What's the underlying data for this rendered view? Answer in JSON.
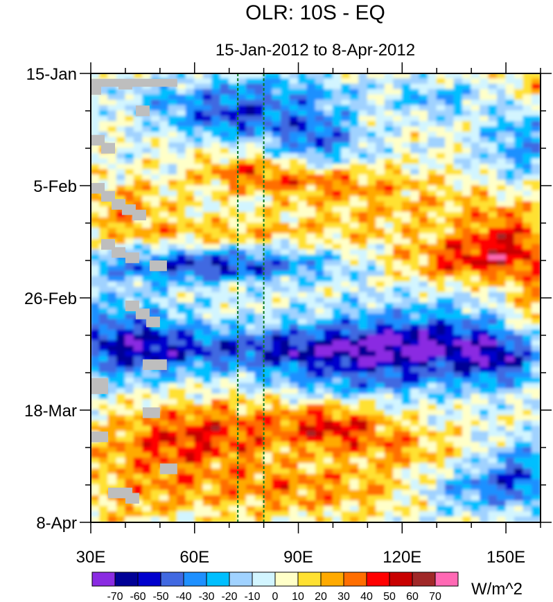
{
  "chart_data": {
    "type": "heatmap",
    "title": "OLR: 10S - EQ",
    "subtitle": "15-Jan-2012 to 8-Apr-2012",
    "x_axis": {
      "range": [
        30,
        160
      ],
      "ticks": [
        30,
        60,
        90,
        120,
        150
      ],
      "tick_labels": [
        "30E",
        "60E",
        "90E",
        "120E",
        "150E"
      ]
    },
    "y_axis": {
      "range_days": [
        0,
        84
      ],
      "ticks_days": [
        0,
        21,
        42,
        63,
        84
      ],
      "tick_labels": [
        "15-Jan",
        "5-Feb",
        "26-Feb",
        "18-Mar",
        "8-Apr"
      ]
    },
    "reference_lines_lon": [
      72.5,
      80
    ],
    "colorbar": {
      "units": "W/m^2",
      "levels": [
        -70,
        -60,
        -50,
        -40,
        -30,
        -20,
        -10,
        0,
        10,
        20,
        30,
        40,
        50,
        60,
        70
      ],
      "level_labels": [
        "-70",
        "-60",
        "-50",
        "-40",
        "-30",
        "-20",
        "-10",
        "0",
        "10",
        "20",
        "30",
        "40",
        "50",
        "60",
        "70"
      ],
      "colors": [
        "#8a2be2",
        "#000096",
        "#0000cd",
        "#4169e1",
        "#1e90ff",
        "#00bfff",
        "#a0d2ff",
        "#d2f5ff",
        "#ffffc8",
        "#ffe132",
        "#ffaa00",
        "#ff6e00",
        "#ff0000",
        "#c80000",
        "#a02828",
        "#ff69b4"
      ]
    },
    "missing_color": "#bebebe",
    "features": [
      {
        "lat_band": "10S-EQ",
        "type": "negative anomaly",
        "lon": [
          60,
          115
        ],
        "day": [
          0,
          15
        ]
      },
      {
        "lat_band": "10S-EQ",
        "type": "negative anomaly",
        "lon": [
          30,
          110
        ],
        "day": [
          32,
          40
        ]
      },
      {
        "lat_band": "10S-EQ",
        "type": "negative anomaly",
        "lon": [
          30,
          160
        ],
        "day": [
          45,
          60
        ]
      },
      {
        "lat_band": "10S-EQ",
        "type": "positive anomaly",
        "lon": [
          30,
          120
        ],
        "day": [
          60,
          84
        ]
      },
      {
        "lat_band": "10S-EQ",
        "type": "positive anomaly",
        "lon": [
          110,
          160
        ],
        "day": [
          30,
          40
        ]
      }
    ]
  }
}
